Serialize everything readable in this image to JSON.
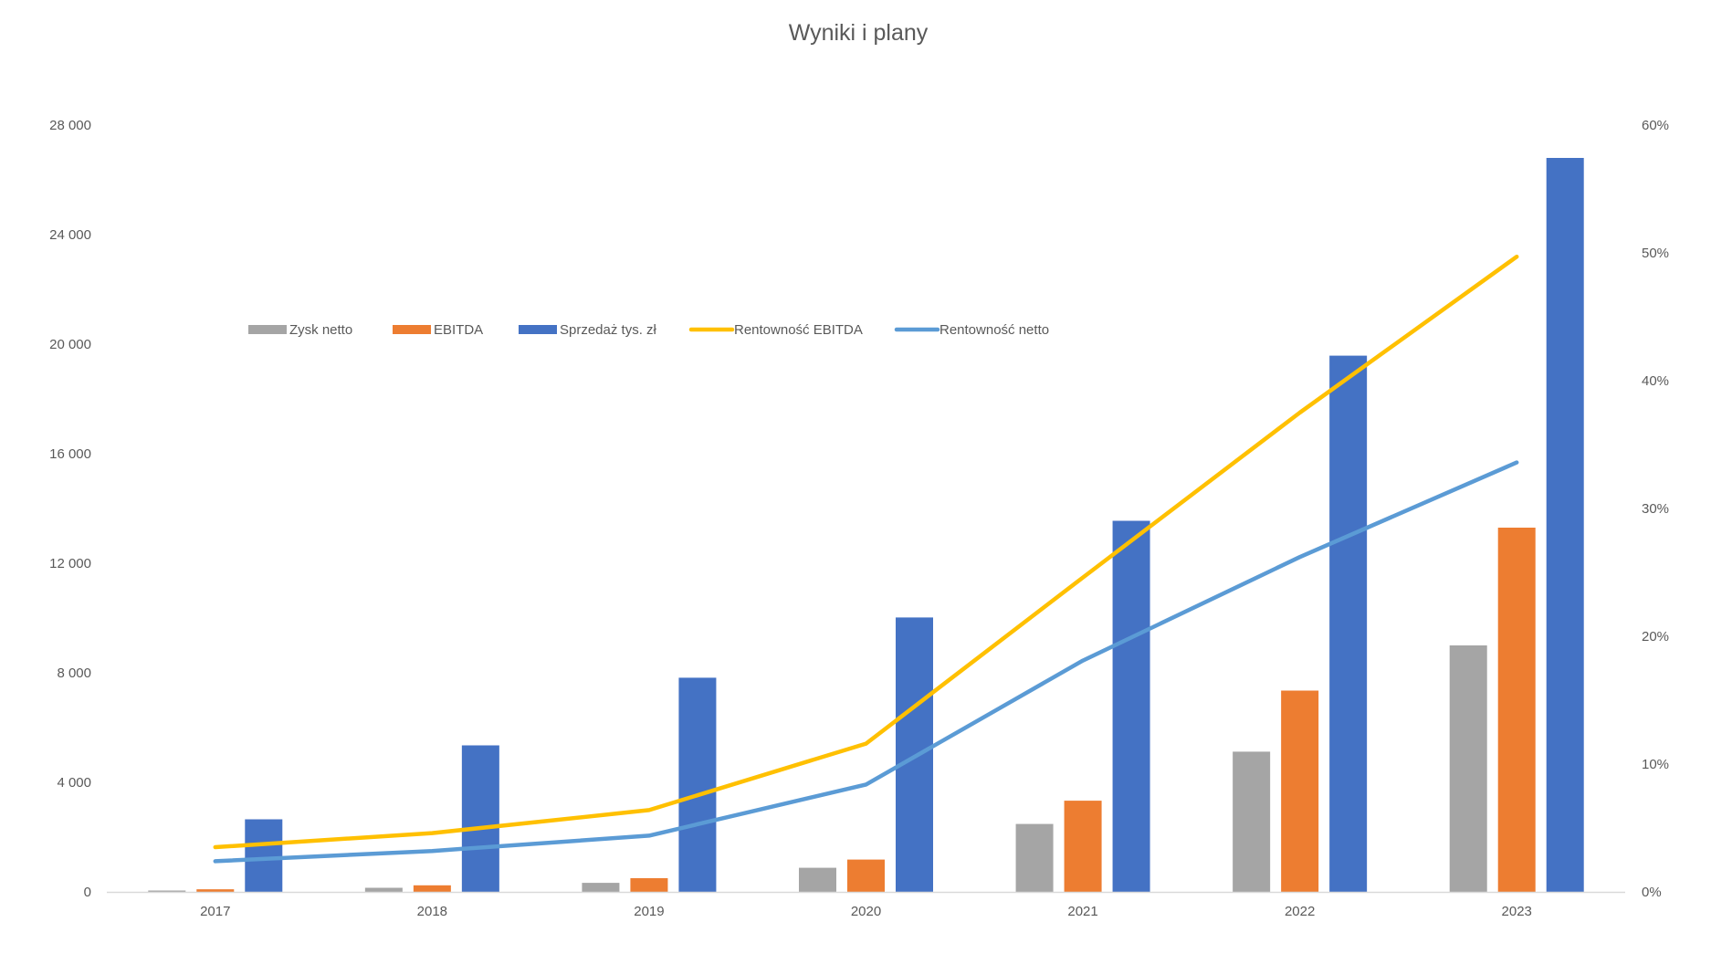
{
  "chart_data": {
    "type": "bar",
    "title": "Wyniki i plany",
    "categories": [
      "2017",
      "2018",
      "2019",
      "2020",
      "2021",
      "2022",
      "2023"
    ],
    "y_left": {
      "min": 0,
      "max": 28000,
      "ticks": [
        0,
        4000,
        8000,
        12000,
        16000,
        20000,
        24000,
        28000
      ],
      "tick_labels": [
        "0",
        "4 000",
        "8 000",
        "12 000",
        "16 000",
        "20 000",
        "24 000",
        "28 000"
      ]
    },
    "y_right": {
      "min": 0,
      "max": 0.6,
      "ticks": [
        0,
        0.1,
        0.2,
        0.3,
        0.4,
        0.5,
        0.6
      ],
      "tick_labels": [
        "0%",
        "10%",
        "20%",
        "30%",
        "40%",
        "50%",
        "60%"
      ]
    },
    "grid": false,
    "legend_position": "upper-left inside plot",
    "bar_series": [
      {
        "name": "Zysk netto",
        "color": "#a5a5a5",
        "values": [
          50,
          150,
          330,
          880,
          2480,
          5120,
          9000
        ]
      },
      {
        "name": "EBITDA",
        "color": "#ed7d31",
        "values": [
          95,
          240,
          500,
          1180,
          3330,
          7350,
          13300
        ]
      },
      {
        "name": "Sprzedaż tys. zł",
        "color": "#4472c4",
        "values": [
          2650,
          5350,
          7820,
          10020,
          13550,
          19580,
          26800
        ]
      }
    ],
    "line_series": [
      {
        "name": "Rentowność EBITDA",
        "color": "#ffc000",
        "axis": "right",
        "values": [
          0.035,
          0.046,
          0.064,
          0.116,
          0.246,
          0.375,
          0.497
        ]
      },
      {
        "name": "Rentowność netto",
        "color": "#5b9bd5",
        "axis": "right",
        "values": [
          0.024,
          0.032,
          0.044,
          0.084,
          0.181,
          0.262,
          0.336
        ]
      }
    ],
    "legend_order": [
      "Zysk netto",
      "EBITDA",
      "Sprzedaż tys. zł",
      "Rentowność EBITDA",
      "Rentowność netto"
    ]
  }
}
